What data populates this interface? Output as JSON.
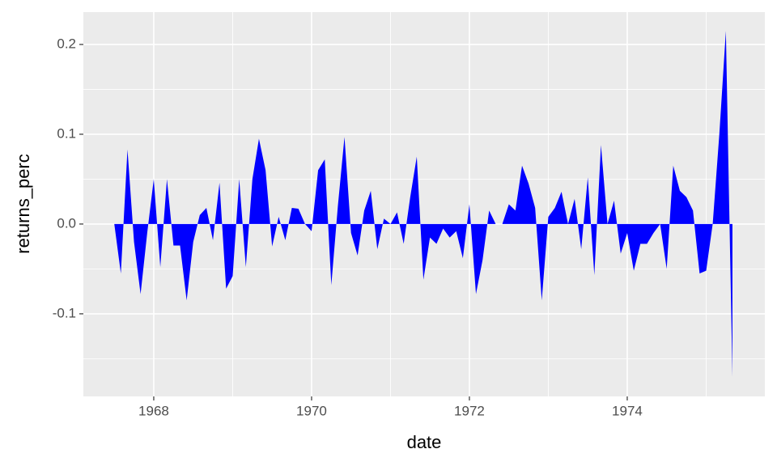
{
  "chart_data": {
    "type": "area",
    "x_label": "date",
    "y_label": "returns_perc",
    "color": "#0000ff",
    "x": [
      1967.5,
      1967.583,
      1967.667,
      1967.75,
      1967.833,
      1967.917,
      1968.0,
      1968.083,
      1968.167,
      1968.25,
      1968.333,
      1968.417,
      1968.5,
      1968.583,
      1968.667,
      1968.75,
      1968.833,
      1968.917,
      1969.0,
      1969.083,
      1969.167,
      1969.25,
      1969.333,
      1969.417,
      1969.5,
      1969.583,
      1969.667,
      1969.75,
      1969.833,
      1969.917,
      1970.0,
      1970.083,
      1970.167,
      1970.25,
      1970.333,
      1970.417,
      1970.5,
      1970.583,
      1970.667,
      1970.75,
      1970.833,
      1970.917,
      1971.0,
      1971.083,
      1971.167,
      1971.25,
      1971.333,
      1971.417,
      1971.5,
      1971.583,
      1971.667,
      1971.75,
      1971.833,
      1971.917,
      1972.0,
      1972.083,
      1972.167,
      1972.25,
      1972.333,
      1972.417,
      1972.5,
      1972.583,
      1972.667,
      1972.75,
      1972.833,
      1972.917,
      1973.0,
      1973.083,
      1973.167,
      1973.25,
      1973.333,
      1973.417,
      1973.5,
      1973.583,
      1973.667,
      1973.75,
      1973.833,
      1973.917,
      1974.0,
      1974.083,
      1974.167,
      1974.25,
      1974.333,
      1974.417,
      1974.5,
      1974.583,
      1974.667,
      1974.75,
      1974.833,
      1974.917,
      1975.0,
      1975.083,
      1975.167,
      1975.25,
      1975.333
    ],
    "values": [
      0.0,
      -0.055,
      0.083,
      -0.02,
      -0.078,
      -0.01,
      0.05,
      -0.048,
      0.05,
      -0.024,
      -0.024,
      -0.085,
      -0.02,
      0.01,
      0.018,
      -0.018,
      0.046,
      -0.072,
      -0.058,
      0.05,
      -0.048,
      0.05,
      0.095,
      0.06,
      -0.025,
      0.008,
      -0.018,
      0.018,
      0.017,
      0.0,
      -0.008,
      0.06,
      0.072,
      -0.068,
      0.02,
      0.097,
      -0.01,
      -0.035,
      0.015,
      0.037,
      -0.028,
      0.006,
      0.0,
      0.013,
      -0.022,
      0.03,
      0.075,
      -0.062,
      -0.015,
      -0.022,
      -0.005,
      -0.015,
      -0.008,
      -0.038,
      0.022,
      -0.078,
      -0.04,
      0.015,
      0.0,
      0.0,
      0.022,
      0.015,
      0.065,
      0.045,
      0.018,
      -0.085,
      0.008,
      0.018,
      0.036,
      0.0,
      0.028,
      -0.028,
      0.052,
      -0.057,
      0.088,
      0.0,
      0.026,
      -0.033,
      -0.01,
      -0.052,
      -0.022,
      -0.022,
      -0.01,
      0.0,
      -0.05,
      0.065,
      0.037,
      0.03,
      0.015,
      -0.055,
      -0.052,
      0.0,
      0.1,
      0.215,
      -0.17
    ],
    "xlim": [
      1967.108,
      1975.744
    ],
    "xticks": [
      1968,
      1970,
      1972,
      1974
    ],
    "ylim": [
      -0.192,
      0.236
    ],
    "yticks": [
      -0.1,
      {
        "value": 0,
        "label": "0.0"
      },
      0.1,
      0.2
    ],
    "grid": true
  }
}
